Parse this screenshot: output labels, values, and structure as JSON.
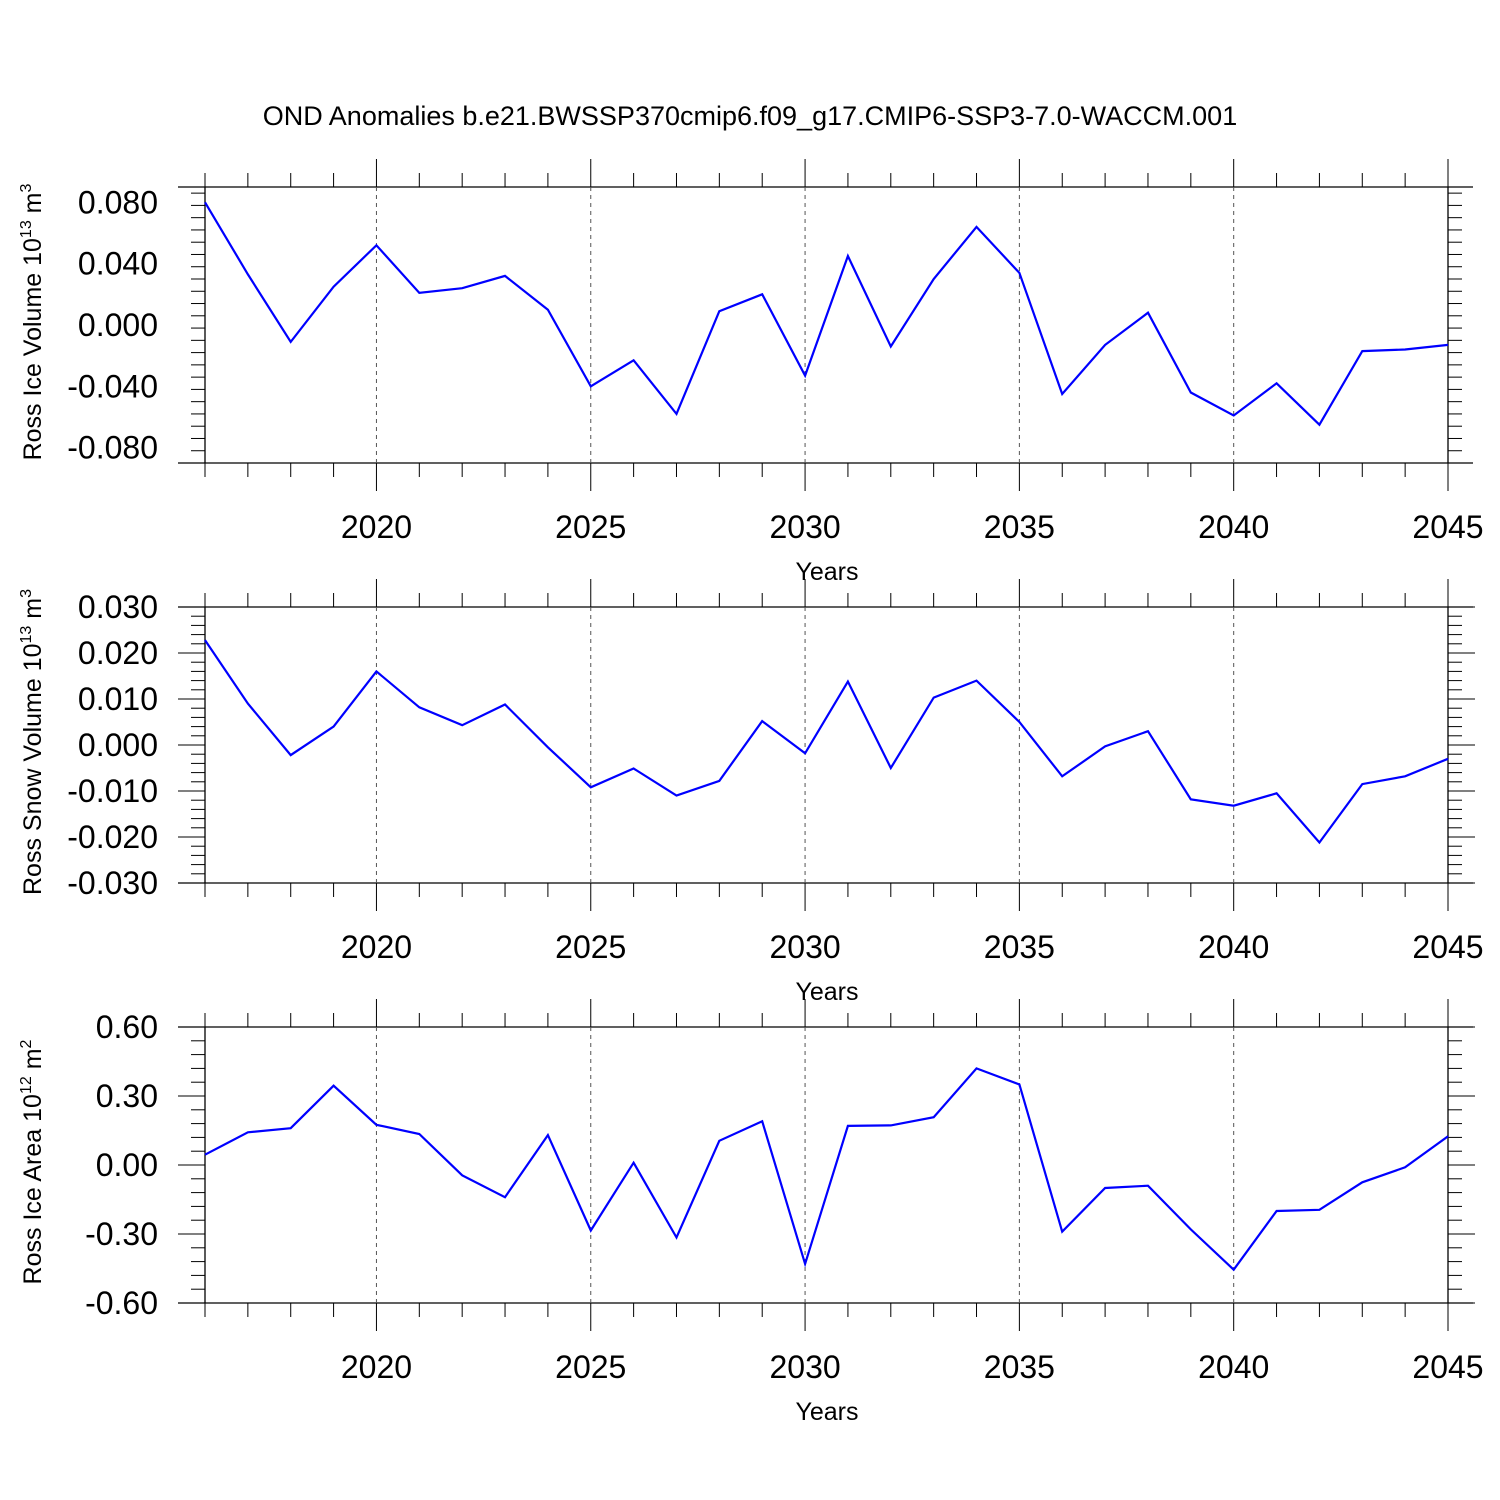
{
  "figure": {
    "title": "OND Anomalies b.e21.BWSSP370cmip6.f09_g17.CMIP6-SSP3-7.0-WACCM.001",
    "line_color": "#0000ff"
  },
  "chart_data": [
    {
      "type": "line",
      "name": "ross-ice-volume",
      "ylabel_main": "Ross Ice Volume 10",
      "ylabel_sup": "13",
      "ylabel_unit": " m",
      "ylabel_unit_sup": "3",
      "xlabel": "Years",
      "xlim": [
        2016,
        2045
      ],
      "ylim": [
        -0.09,
        0.09
      ],
      "yticks": [
        0.08,
        0.04,
        0.0,
        -0.04,
        -0.08
      ],
      "ytick_labels": [
        "0.080",
        "0.040",
        "0.000",
        "-0.040",
        "-0.080"
      ],
      "xticks": [
        2020,
        2025,
        2030,
        2035,
        2040,
        2045
      ],
      "xtick_labels": [
        "2020",
        "2025",
        "2030",
        "2035",
        "2040",
        "2045"
      ],
      "series": [
        {
          "name": "Ross Ice Volume",
          "x": [
            2016,
            2017,
            2018,
            2019,
            2020,
            2021,
            2022,
            2023,
            2024,
            2025,
            2026,
            2027,
            2028,
            2029,
            2030,
            2031,
            2032,
            2033,
            2034,
            2035,
            2036,
            2037,
            2038,
            2039,
            2040,
            2041,
            2042,
            2043,
            2044,
            2045
          ],
          "y": [
            0.08,
            0.033,
            -0.011,
            0.025,
            0.052,
            0.021,
            0.024,
            0.032,
            0.01,
            -0.04,
            -0.023,
            -0.058,
            0.009,
            0.02,
            -0.033,
            0.045,
            -0.014,
            0.03,
            0.064,
            0.034,
            -0.045,
            -0.013,
            0.008,
            -0.044,
            -0.059,
            -0.038,
            -0.065,
            -0.017,
            -0.016,
            -0.013
          ]
        }
      ]
    },
    {
      "type": "line",
      "name": "ross-snow-volume",
      "ylabel_main": "Ross Snow Volume 10",
      "ylabel_sup": "13",
      "ylabel_unit": " m",
      "ylabel_unit_sup": "3",
      "xlabel": "Years",
      "xlim": [
        2016,
        2045
      ],
      "ylim": [
        -0.03,
        0.03
      ],
      "yticks": [
        0.03,
        0.02,
        0.01,
        0.0,
        -0.01,
        -0.02,
        -0.03
      ],
      "ytick_labels": [
        "0.030",
        "0.020",
        "0.010",
        "0.000",
        "-0.010",
        "-0.020",
        "-0.030"
      ],
      "xticks": [
        2020,
        2025,
        2030,
        2035,
        2040,
        2045
      ],
      "xtick_labels": [
        "2020",
        "2025",
        "2030",
        "2035",
        "2040",
        "2045"
      ],
      "series": [
        {
          "name": "Ross Snow Volume",
          "x": [
            2016,
            2017,
            2018,
            2019,
            2020,
            2021,
            2022,
            2023,
            2024,
            2025,
            2026,
            2027,
            2028,
            2029,
            2030,
            2031,
            2032,
            2033,
            2034,
            2035,
            2036,
            2037,
            2038,
            2039,
            2040,
            2041,
            2042,
            2043,
            2044,
            2045
          ],
          "y": [
            0.0228,
            0.009,
            -0.0022,
            0.004,
            0.016,
            0.0082,
            0.0043,
            0.0088,
            -0.0005,
            -0.0092,
            -0.0051,
            -0.011,
            -0.0078,
            0.0052,
            -0.0018,
            0.0138,
            -0.005,
            0.0103,
            0.014,
            0.005,
            -0.0068,
            -0.0003,
            0.003,
            -0.0118,
            -0.0132,
            -0.0105,
            -0.0212,
            -0.0085,
            -0.0068,
            -0.003
          ]
        }
      ]
    },
    {
      "type": "line",
      "name": "ross-ice-area",
      "ylabel_main": "Ross Ice Area 10",
      "ylabel_sup": "12",
      "ylabel_unit": " m",
      "ylabel_unit_sup": "2",
      "xlabel": "Years",
      "xlim": [
        2016,
        2045
      ],
      "ylim": [
        -0.6,
        0.6
      ],
      "yticks": [
        0.6,
        0.3,
        0.0,
        -0.3,
        -0.6
      ],
      "ytick_labels": [
        "0.60",
        "0.30",
        "0.00",
        "-0.30",
        "-0.60"
      ],
      "xticks": [
        2020,
        2025,
        2030,
        2035,
        2040,
        2045
      ],
      "xtick_labels": [
        "2020",
        "2025",
        "2030",
        "2035",
        "2040",
        "2045"
      ],
      "series": [
        {
          "name": "Ross Ice Area",
          "x": [
            2016,
            2017,
            2018,
            2019,
            2020,
            2021,
            2022,
            2023,
            2024,
            2025,
            2026,
            2027,
            2028,
            2029,
            2030,
            2031,
            2032,
            2033,
            2034,
            2035,
            2036,
            2037,
            2038,
            2039,
            2040,
            2041,
            2042,
            2043,
            2044,
            2045
          ],
          "y": [
            0.045,
            0.142,
            0.16,
            0.345,
            0.175,
            0.135,
            -0.045,
            -0.14,
            0.13,
            -0.285,
            0.01,
            -0.315,
            0.105,
            0.19,
            -0.43,
            0.17,
            0.172,
            0.208,
            0.42,
            0.35,
            -0.29,
            -0.1,
            -0.09,
            -0.28,
            -0.455,
            -0.2,
            -0.195,
            -0.075,
            -0.01,
            0.125
          ]
        }
      ]
    }
  ]
}
